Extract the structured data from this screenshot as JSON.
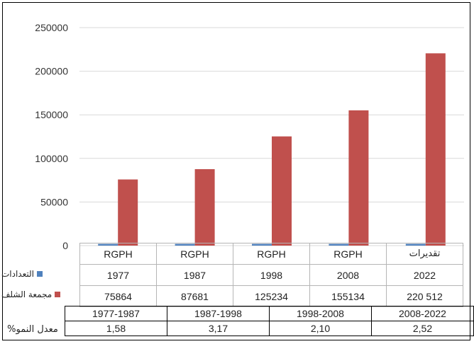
{
  "chart_data": {
    "type": "bar",
    "categories": [
      "1977",
      "1987",
      "1998",
      "2008",
      "2022"
    ],
    "source_labels": [
      "RGPH",
      "RGPH",
      "RGPH",
      "RGPH",
      "تقديرات"
    ],
    "series": [
      {
        "name": "التعدادات",
        "values": [
          1977,
          1987,
          1998,
          2008,
          2022
        ],
        "color": "#4F81BD"
      },
      {
        "name": "مجمعة الشلف",
        "values": [
          75864,
          87681,
          125234,
          155134,
          220512
        ],
        "color": "#C0504D"
      }
    ],
    "value_labels": [
      "75864",
      "87681",
      "125234",
      "155134",
      "220 512"
    ],
    "ylim": [
      0,
      250000
    ],
    "yticks": [
      "0",
      "50000",
      "100000",
      "150000",
      "200000",
      "250000"
    ],
    "grid": true,
    "legend": "left, inside data table"
  },
  "growth": {
    "label": "معدل النمو%",
    "periods": [
      "1977-1987",
      "1987-1998",
      "1998-2008",
      "2008-2022"
    ],
    "rates": [
      "1,58",
      "3,17",
      "2,10",
      "2,52"
    ]
  }
}
